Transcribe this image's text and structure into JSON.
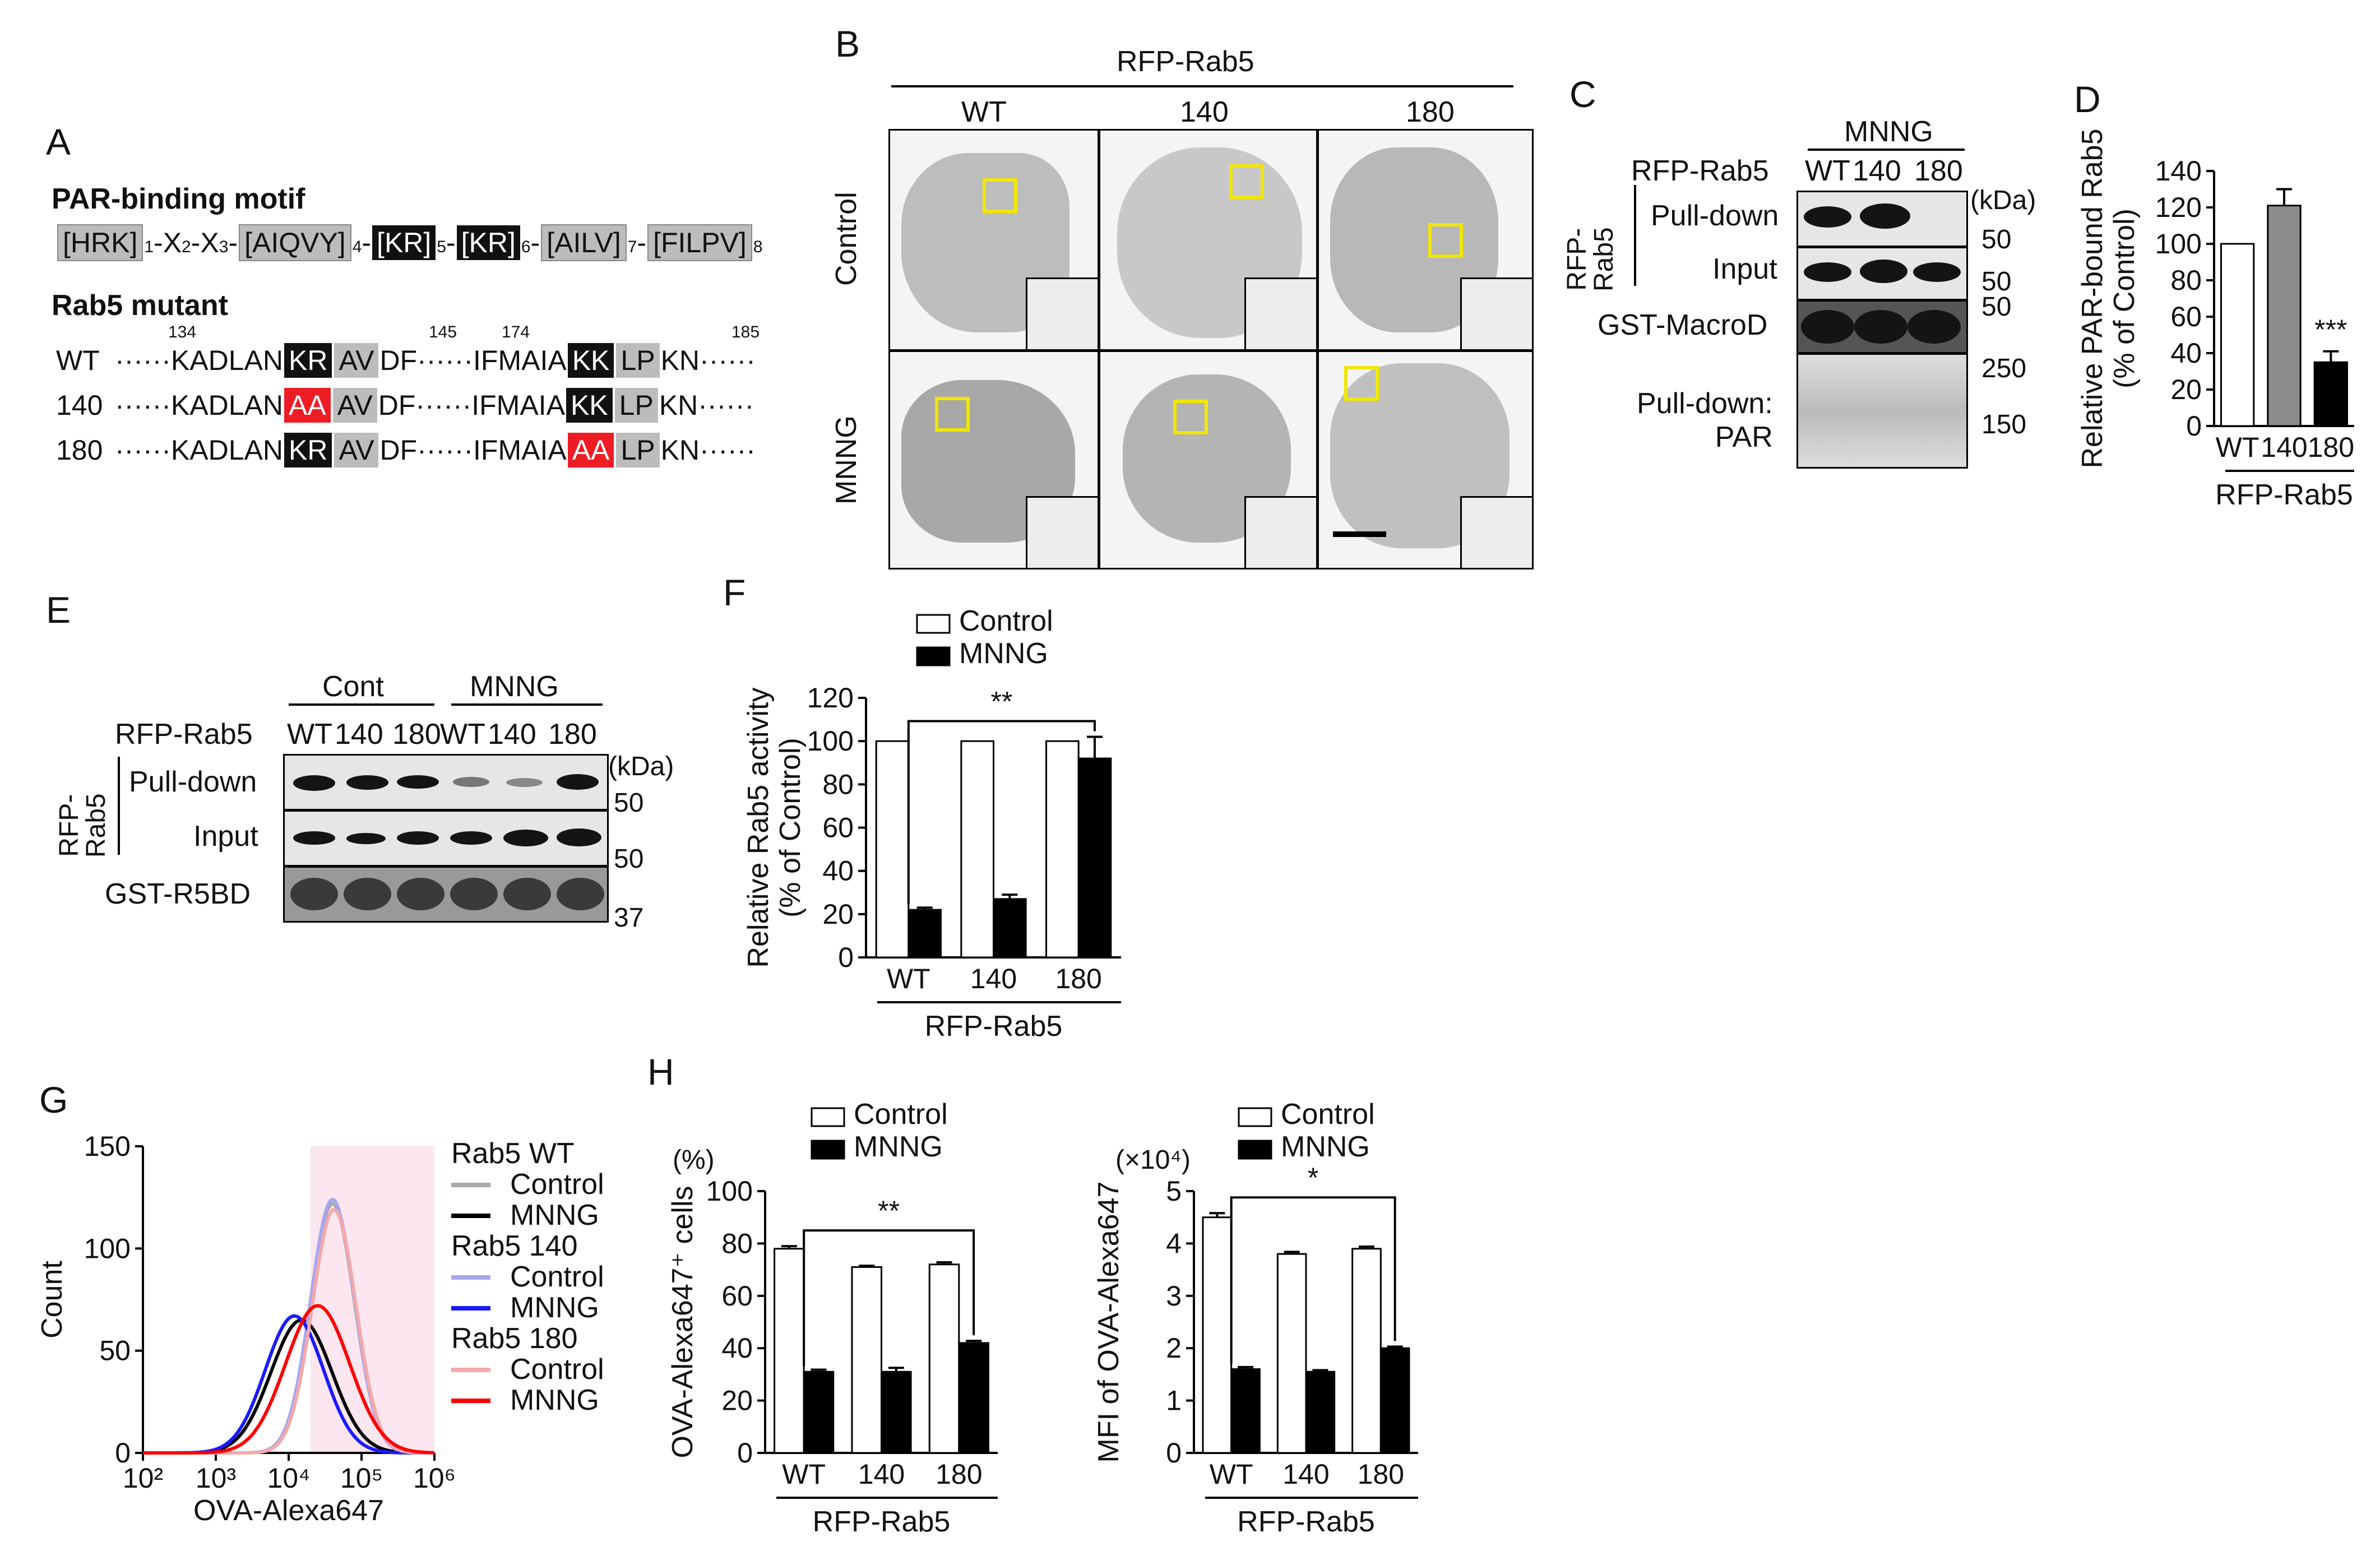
{
  "panels": {
    "A": {
      "label": "A",
      "motif_title": "PAR-binding motif",
      "motif": {
        "seg1": "[HRK]",
        "s1": "1",
        "x2": "-X",
        "s2": "2",
        "x3": "-X",
        "s3": "3",
        "dash3": "-",
        "seg4": "[AIQVY]",
        "s4": "4",
        "dash4": "-",
        "seg5": "[KR]",
        "s5": "5",
        "dash5": "-",
        "seg6": "[KR]",
        "s6": "6",
        "dash6": "-",
        "seg7": "[AILV]",
        "s7": "7",
        "dash7": "-",
        "seg8": "[FILPV]",
        "s8": "8"
      },
      "mutant_title": "Rab5 mutant",
      "positions": {
        "p134": "134",
        "p145": "145",
        "p174": "174",
        "p185": "185"
      },
      "rows": [
        {
          "name": "WT",
          "dots": "······",
          "pre": "KADLAN",
          "box1": "KR",
          "mid": "AV",
          "df": "DF",
          "dots2": "······",
          "pre2": "IFMAIA",
          "box2": "KK",
          "mid2": "LP",
          "post": "KN",
          "dots3": "······"
        },
        {
          "name": "140",
          "dots": "······",
          "pre": "KADLAN",
          "box1": "AA",
          "mid": "AV",
          "df": "DF",
          "dots2": "······",
          "pre2": "IFMAIA",
          "box2": "KK",
          "mid2": "LP",
          "post": "KN",
          "dots3": "······"
        },
        {
          "name": "180",
          "dots": "······",
          "pre": "KADLAN",
          "box1": "KR",
          "mid": "AV",
          "df": "DF",
          "dots2": "······",
          "pre2": "IFMAIA",
          "box2": "AA",
          "mid2": "LP",
          "post": "KN",
          "dots3": "······"
        }
      ]
    },
    "B": {
      "label": "B",
      "header": "RFP-Rab5",
      "columns": [
        "WT",
        "140",
        "180"
      ],
      "rows": [
        "Control",
        "MNNG"
      ]
    },
    "C": {
      "label": "C",
      "treatment": "MNNG",
      "construct": "RFP-Rab5",
      "lanes": [
        "WT",
        "140",
        "180"
      ],
      "side_label": "RFP-\nRab5",
      "rows": [
        "Pull-down",
        "Input",
        "GST-MacroD",
        "Pull-down:\nPAR"
      ],
      "unit": "(kDa)",
      "markers": [
        "50",
        "50",
        "50",
        "250",
        "150"
      ]
    },
    "E": {
      "label": "E",
      "groups": [
        "Cont",
        "MNNG"
      ],
      "construct": "RFP-Rab5",
      "lanes": [
        "WT",
        "140",
        "180",
        "WT",
        "140",
        "180"
      ],
      "side_label": "RFP-\nRab5",
      "rows": [
        "Pull-down",
        "Input",
        "GST-R5BD"
      ],
      "unit": "(kDa)",
      "markers": [
        "50",
        "50",
        "37"
      ]
    }
  },
  "chart_data": [
    {
      "id": "D",
      "panel_label": "D",
      "type": "bar",
      "categories": [
        "WT",
        "140",
        "180"
      ],
      "series": [
        {
          "values": [
            100,
            121,
            35
          ],
          "errors": [
            0,
            9,
            6
          ]
        }
      ],
      "bar_colors": [
        "#ffffff",
        "#8c8c8c",
        "#000000"
      ],
      "ylabel": "Relative PAR-bound Rab5\n(% of Control)",
      "xlabel": "RFP-Rab5",
      "ylim": [
        0,
        140
      ],
      "yticks": [
        0,
        20,
        40,
        60,
        80,
        100,
        120,
        140
      ],
      "annotations": [
        {
          "text": "***",
          "category": "180"
        }
      ]
    },
    {
      "id": "F",
      "panel_label": "F",
      "type": "bar",
      "categories": [
        "WT",
        "140",
        "180"
      ],
      "series": [
        {
          "name": "Control",
          "values": [
            100,
            100,
            100
          ],
          "errors": [
            0,
            0,
            0
          ],
          "color": "#ffffff"
        },
        {
          "name": "MNNG",
          "values": [
            22,
            27,
            92
          ],
          "errors": [
            1,
            2,
            10
          ],
          "color": "#000000"
        }
      ],
      "ylabel": "Relative Rab5 activity\n(% of Control)",
      "xlabel": "RFP-Rab5",
      "ylim": [
        0,
        120
      ],
      "yticks": [
        0,
        20,
        40,
        60,
        80,
        100,
        120
      ],
      "legend": "top",
      "significance": {
        "text": "**",
        "from": "WT",
        "to": "180"
      }
    },
    {
      "id": "G",
      "panel_label": "G",
      "type": "line",
      "xlabel": "OVA-Alexa647",
      "ylabel": "Count",
      "xscale": "log",
      "xlim": [
        100,
        1000000
      ],
      "xticks": [
        "10²",
        "10³",
        "10⁴",
        "10⁵",
        "10⁶"
      ],
      "ylim": [
        0,
        150
      ],
      "yticks": [
        0,
        50,
        100,
        150
      ],
      "gate_range": [
        20000,
        1000000
      ],
      "legend_groups": [
        "Rab5 WT",
        "Rab5 140",
        "Rab5 180"
      ],
      "series": [
        {
          "name": "Control",
          "group": "Rab5 WT",
          "color": "#a9a9a9",
          "peak_x": 40000,
          "peak_y": 122,
          "width": 0.3
        },
        {
          "name": "MNNG",
          "group": "Rab5 WT",
          "color": "#000000",
          "peak_x": 15000,
          "peak_y": 65,
          "width": 0.42
        },
        {
          "name": "Control",
          "group": "Rab5 140",
          "color": "#a7a7ee",
          "peak_x": 40000,
          "peak_y": 124,
          "width": 0.3
        },
        {
          "name": "MNNG",
          "group": "Rab5 140",
          "color": "#1a1aff",
          "peak_x": 12000,
          "peak_y": 67,
          "width": 0.4
        },
        {
          "name": "Control",
          "group": "Rab5 180",
          "color": "#f4a8aa",
          "peak_x": 42000,
          "peak_y": 119,
          "width": 0.3
        },
        {
          "name": "MNNG",
          "group": "Rab5 180",
          "color": "#ff0000",
          "peak_x": 25000,
          "peak_y": 72,
          "width": 0.44
        }
      ]
    },
    {
      "id": "H1",
      "panel_label": "H",
      "type": "bar",
      "categories": [
        "WT",
        "140",
        "180"
      ],
      "series": [
        {
          "name": "Control",
          "values": [
            78,
            71,
            72
          ],
          "errors": [
            1,
            0.5,
            0.8
          ],
          "color": "#ffffff"
        },
        {
          "name": "MNNG",
          "values": [
            31,
            31,
            42
          ],
          "errors": [
            0.8,
            1.5,
            0.8
          ],
          "color": "#000000"
        }
      ],
      "unit_label": "(%)",
      "ylabel": "OVA-Alexa647⁺ cells",
      "xlabel": "RFP-Rab5",
      "ylim": [
        0,
        100
      ],
      "yticks": [
        0,
        20,
        40,
        60,
        80,
        100
      ],
      "legend": "top",
      "significance": {
        "text": "**",
        "from": "WT",
        "to": "180"
      }
    },
    {
      "id": "H2",
      "type": "bar",
      "categories": [
        "WT",
        "140",
        "180"
      ],
      "series": [
        {
          "name": "Control",
          "values": [
            4.5,
            3.8,
            3.9
          ],
          "errors": [
            0.08,
            0.04,
            0.04
          ],
          "color": "#ffffff"
        },
        {
          "name": "MNNG",
          "values": [
            1.6,
            1.55,
            2.0
          ],
          "errors": [
            0.04,
            0.03,
            0.03
          ],
          "color": "#000000"
        }
      ],
      "unit_label": "(×10⁴)",
      "ylabel": "MFI of OVA-Alexa647",
      "xlabel": "RFP-Rab5",
      "ylim": [
        0,
        5
      ],
      "yticks": [
        0,
        1,
        2,
        3,
        4,
        5
      ],
      "legend": "top",
      "significance": {
        "text": "*",
        "from": "WT",
        "to": "180"
      }
    }
  ]
}
